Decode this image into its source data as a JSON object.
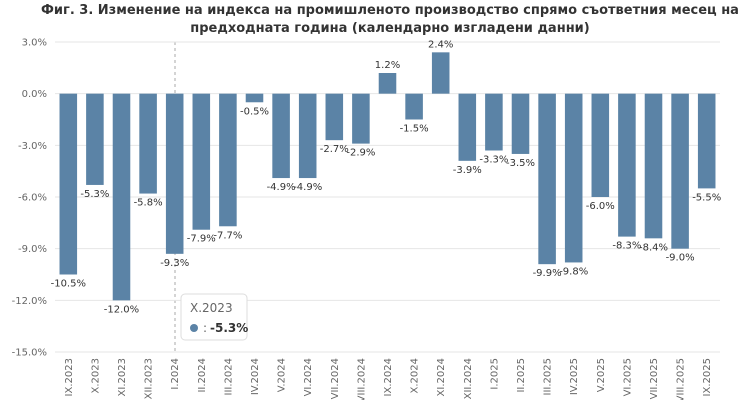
{
  "chart_data": {
    "type": "bar",
    "title": "Фиг. 3. Изменение на индекса на промишленото производство спрямо съответния месец на предходната година (календарно изгладени данни)",
    "categories": [
      "IX.2023",
      "X.2023",
      "XI.2023",
      "XII.2023",
      "I.2024",
      "II.2024",
      "III.2024",
      "IV.2024",
      "V.2024",
      "VI.2024",
      "VII.2024",
      "VIII.2024",
      "IX.2024",
      "X.2024",
      "XI.2024",
      "XII.2024",
      "I.2025",
      "II.2025",
      "III.2025",
      "IV.2025",
      "V.2025",
      "VI.2025",
      "VII.2025",
      "VIII.2025",
      "IX.2025"
    ],
    "values": [
      -10.5,
      -5.3,
      -12.0,
      -5.8,
      -9.3,
      -7.9,
      -7.7,
      -0.5,
      -4.9,
      -4.9,
      -2.7,
      -2.9,
      1.2,
      -1.5,
      2.4,
      -3.9,
      -3.3,
      -3.5,
      -9.9,
      -9.8,
      -6.0,
      -8.3,
      -8.4,
      -9.0,
      -5.5
    ],
    "value_labels": [
      "-10.5%",
      "-5.3%",
      "-12.0%",
      "-5.8%",
      "-9.3%",
      "-7.9%",
      "-7.7%",
      "-0.5%",
      "-4.9%",
      "-4.9%",
      "-2.7%",
      "-2.9%",
      "1.2%",
      "-1.5%",
      "2.4%",
      "-3.9%",
      "-3.3%",
      "-3.5%",
      "-9.9%",
      "-9.8%",
      "-6.0%",
      "-8.3%",
      "-8.4%",
      "-9.0%",
      "-5.5%"
    ],
    "color": "#5b83a6",
    "ylim": [
      -15,
      3
    ],
    "yticks": [
      {
        "value": 3,
        "label": "3.0%"
      },
      {
        "value": 0,
        "label": "0.0%"
      },
      {
        "value": -3,
        "label": "-3.0%"
      },
      {
        "value": -6,
        "label": "-6.0%"
      },
      {
        "value": -9,
        "label": "-9.0%"
      },
      {
        "value": -12,
        "label": "-12.0%"
      },
      {
        "value": -15,
        "label": "-15.0%"
      }
    ],
    "grid": true,
    "tooltip_separator": ":"
  }
}
